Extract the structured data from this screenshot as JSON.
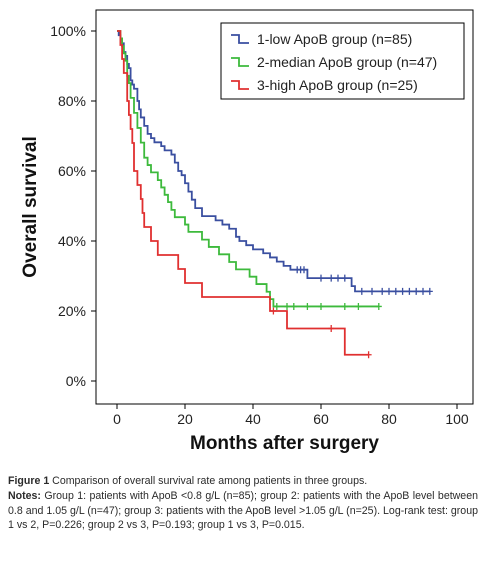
{
  "chart_data": {
    "type": "line",
    "subtype": "kaplan-meier step",
    "xlabel": "Months after surgery",
    "ylabel": "Overall survival",
    "xlim": [
      0,
      100
    ],
    "ylim": [
      0,
      100
    ],
    "xticks": [
      "0",
      "20",
      "40",
      "60",
      "80",
      "100"
    ],
    "yticks": [
      "0%",
      "20%",
      "40%",
      "60%",
      "80%",
      "100%"
    ],
    "grid": false,
    "legend_position": "top-right",
    "series": [
      {
        "name": "1-low ApoB group (n=85)",
        "color": "#3a4fa0",
        "points": [
          [
            0,
            100
          ],
          [
            0.5,
            98.8
          ],
          [
            1,
            97.6
          ],
          [
            1.5,
            96.5
          ],
          [
            2,
            94
          ],
          [
            2.5,
            92.9
          ],
          [
            3,
            90.6
          ],
          [
            3.5,
            89.4
          ],
          [
            4,
            85.9
          ],
          [
            4.5,
            84.7
          ],
          [
            5,
            83.5
          ],
          [
            6,
            80
          ],
          [
            6.5,
            77.6
          ],
          [
            7,
            75.3
          ],
          [
            8,
            72.9
          ],
          [
            9,
            70.6
          ],
          [
            10,
            69.4
          ],
          [
            11,
            68.2
          ],
          [
            13,
            67.1
          ],
          [
            14,
            65.9
          ],
          [
            16,
            64.7
          ],
          [
            17,
            62.4
          ],
          [
            18,
            60
          ],
          [
            19,
            58.8
          ],
          [
            20,
            56.5
          ],
          [
            21,
            54.1
          ],
          [
            22,
            51.8
          ],
          [
            23,
            49.4
          ],
          [
            25,
            47.1
          ],
          [
            29,
            45.9
          ],
          [
            31,
            44.7
          ],
          [
            33,
            43.5
          ],
          [
            35,
            41.2
          ],
          [
            36,
            40
          ],
          [
            38,
            38.8
          ],
          [
            40,
            37.6
          ],
          [
            43,
            36.5
          ],
          [
            45,
            35.3
          ],
          [
            47,
            34.1
          ],
          [
            49,
            32.9
          ],
          [
            51,
            31.8
          ],
          [
            56,
            29.4
          ],
          [
            69,
            27.1
          ],
          [
            70,
            25.6
          ],
          [
            92,
            25.6
          ]
        ],
        "censored": [
          [
            53,
            31.8
          ],
          [
            54,
            31.8
          ],
          [
            55,
            31.8
          ],
          [
            60,
            29.4
          ],
          [
            63,
            29.4
          ],
          [
            65,
            29.4
          ],
          [
            67,
            29.4
          ],
          [
            72,
            25.6
          ],
          [
            75,
            25.6
          ],
          [
            78,
            25.6
          ],
          [
            80,
            25.6
          ],
          [
            82,
            25.6
          ],
          [
            84,
            25.6
          ],
          [
            86,
            25.6
          ],
          [
            88,
            25.6
          ],
          [
            90,
            25.6
          ],
          [
            92,
            25.6
          ]
        ]
      },
      {
        "name": "2-median ApoB group (n=47)",
        "color": "#3dba3c",
        "points": [
          [
            0,
            100
          ],
          [
            1,
            97.9
          ],
          [
            1.5,
            95.7
          ],
          [
            2,
            93.6
          ],
          [
            2.5,
            91.5
          ],
          [
            3,
            87.2
          ],
          [
            3.5,
            85.1
          ],
          [
            4,
            80.9
          ],
          [
            5,
            76.6
          ],
          [
            6,
            72.3
          ],
          [
            7,
            68.1
          ],
          [
            8,
            63.8
          ],
          [
            9,
            61.7
          ],
          [
            10,
            59.6
          ],
          [
            12,
            57.4
          ],
          [
            13,
            55.3
          ],
          [
            14,
            53.2
          ],
          [
            15,
            51.1
          ],
          [
            16,
            48.9
          ],
          [
            17,
            46.8
          ],
          [
            20,
            44.7
          ],
          [
            21,
            42.6
          ],
          [
            25,
            40.4
          ],
          [
            27,
            38.3
          ],
          [
            30,
            36.2
          ],
          [
            33,
            34
          ],
          [
            35,
            31.9
          ],
          [
            39,
            29.8
          ],
          [
            41,
            27.7
          ],
          [
            44,
            25.5
          ],
          [
            45,
            23.4
          ],
          [
            46,
            21.3
          ],
          [
            77,
            21.3
          ]
        ],
        "censored": [
          [
            47,
            21.3
          ],
          [
            50,
            21.3
          ],
          [
            52,
            21.3
          ],
          [
            56,
            21.3
          ],
          [
            60,
            21.3
          ],
          [
            67,
            21.3
          ],
          [
            71,
            21.3
          ],
          [
            77,
            21.3
          ]
        ]
      },
      {
        "name": "3-high ApoB group (n=25)",
        "color": "#e03030",
        "points": [
          [
            0,
            100
          ],
          [
            1,
            96
          ],
          [
            1.5,
            92
          ],
          [
            2,
            88
          ],
          [
            3,
            80
          ],
          [
            3.5,
            76
          ],
          [
            4,
            72
          ],
          [
            4.5,
            68
          ],
          [
            5,
            60
          ],
          [
            6,
            56
          ],
          [
            7,
            52
          ],
          [
            7.5,
            48
          ],
          [
            8,
            44
          ],
          [
            10,
            40
          ],
          [
            12,
            36
          ],
          [
            18,
            32
          ],
          [
            20,
            28
          ],
          [
            25,
            24
          ],
          [
            45,
            20
          ],
          [
            50,
            15
          ],
          [
            67,
            7.5
          ],
          [
            74,
            7.5
          ]
        ],
        "censored": [
          [
            46,
            20
          ],
          [
            63,
            15
          ],
          [
            74,
            7.5
          ]
        ]
      }
    ]
  },
  "caption": {
    "figure_label": "Figure 1",
    "figure_text": "Comparison of overall survival rate among patients in three groups.",
    "notes_label": "Notes:",
    "notes_text": "Group 1: patients with ApoB <0.8 g/L (n=85); group 2: patients with the ApoB level between 0.8 and 1.05 g/L (n=47); group 3: patients with the ApoB level >1.05 g/L (n=25). Log-rank test: group 1 vs 2, P=0.226; group 2 vs 3, P=0.193; group 1 vs 3, P=0.015."
  }
}
